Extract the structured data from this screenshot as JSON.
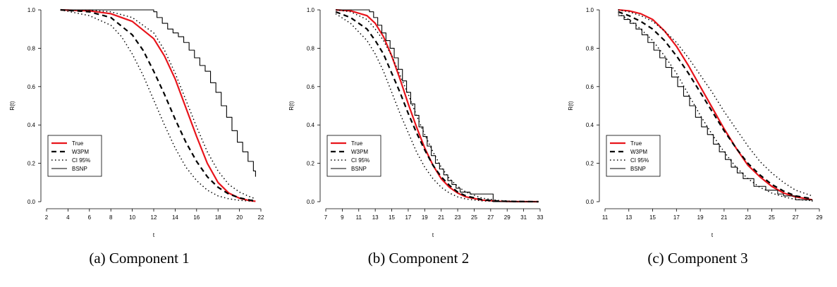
{
  "figure": {
    "captions": [
      "(a) Component 1",
      "(b) Component 2",
      "(c) Component 3"
    ]
  },
  "chart_data": [
    {
      "type": "line",
      "title": "",
      "xlabel": "t",
      "ylabel": "R(t)",
      "xlim": [
        2,
        22
      ],
      "ylim": [
        0,
        1
      ],
      "xticks": [
        2,
        4,
        6,
        8,
        10,
        12,
        14,
        16,
        18,
        20,
        22
      ],
      "yticks": [
        0.0,
        0.2,
        0.4,
        0.6,
        0.8,
        1.0
      ],
      "xtick_labels": [
        "2",
        "4",
        "6",
        "8",
        "10",
        "12",
        "14",
        "16",
        "18",
        "20",
        "22"
      ],
      "ytick_labels": [
        "0.0",
        "0.2",
        "0.4",
        "0.6",
        "0.8",
        "1.0"
      ],
      "grid": false,
      "legend_position": "bottom-left",
      "colors": {
        "True": "#e8141b",
        "W3PM": "#000000",
        "CI 95%": "#000000",
        "BSNP": "#000000"
      },
      "series": [
        {
          "name": "True",
          "style": "solid-red",
          "x": [
            3.3,
            6,
            8,
            10,
            12,
            13,
            14,
            15,
            16,
            17,
            18,
            19,
            20,
            21,
            21.5
          ],
          "y": [
            1.0,
            0.995,
            0.98,
            0.94,
            0.85,
            0.76,
            0.64,
            0.49,
            0.34,
            0.2,
            0.1,
            0.045,
            0.018,
            0.005,
            0.002
          ]
        },
        {
          "name": "W3PM",
          "style": "dashed",
          "x": [
            3.3,
            6,
            8,
            10,
            11,
            12,
            13,
            14,
            15,
            16,
            17,
            18,
            19,
            20,
            21,
            21.5
          ],
          "y": [
            1.0,
            0.99,
            0.96,
            0.87,
            0.79,
            0.68,
            0.56,
            0.43,
            0.31,
            0.21,
            0.13,
            0.075,
            0.04,
            0.02,
            0.008,
            0.005
          ]
        },
        {
          "name": "CI 95%",
          "style": "dotted",
          "x": [
            3.3,
            6,
            8,
            9,
            10,
            11,
            12,
            13,
            14,
            15,
            16,
            17,
            18,
            19,
            20,
            21,
            21.5
          ],
          "y": [
            1.0,
            0.97,
            0.92,
            0.86,
            0.77,
            0.66,
            0.53,
            0.4,
            0.28,
            0.18,
            0.11,
            0.06,
            0.03,
            0.015,
            0.007,
            0.003,
            0.002
          ]
        },
        {
          "name": "CI 95%",
          "style": "dotted",
          "x": [
            3.3,
            6,
            8,
            10,
            12,
            13,
            14,
            15,
            16,
            17,
            18,
            19,
            20,
            21,
            21.5
          ],
          "y": [
            1.0,
            0.998,
            0.99,
            0.96,
            0.88,
            0.79,
            0.67,
            0.53,
            0.39,
            0.26,
            0.16,
            0.09,
            0.05,
            0.025,
            0.015
          ]
        },
        {
          "name": "BSNP",
          "style": "step",
          "x": [
            3.3,
            12,
            12.3,
            12.8,
            13.3,
            13.8,
            14.3,
            14.8,
            15.3,
            15.8,
            16.3,
            16.8,
            17.3,
            17.8,
            18.3,
            18.8,
            19.3,
            19.8,
            20.3,
            20.8,
            21.3,
            21.5
          ],
          "y": [
            1.0,
            0.99,
            0.96,
            0.93,
            0.9,
            0.88,
            0.86,
            0.83,
            0.79,
            0.75,
            0.71,
            0.68,
            0.62,
            0.57,
            0.5,
            0.44,
            0.37,
            0.31,
            0.26,
            0.21,
            0.16,
            0.13
          ]
        }
      ],
      "legend": [
        "True",
        "W3PM",
        "CI 95%",
        "BSNP"
      ]
    },
    {
      "type": "line",
      "title": "",
      "xlabel": "t",
      "ylabel": "R(t)",
      "xlim": [
        7,
        33
      ],
      "ylim": [
        0,
        1
      ],
      "xticks": [
        7,
        9,
        11,
        13,
        15,
        17,
        19,
        21,
        23,
        25,
        27,
        29,
        31,
        33
      ],
      "yticks": [
        0.0,
        0.2,
        0.4,
        0.6,
        0.8,
        1.0
      ],
      "xtick_labels": [
        "7",
        "9",
        "11",
        "13",
        "15",
        "17",
        "19",
        "21",
        "23",
        "25",
        "27",
        "29",
        "31",
        "33"
      ],
      "ytick_labels": [
        "0.0",
        "0.2",
        "0.4",
        "0.6",
        "0.8",
        "1.0"
      ],
      "grid": false,
      "legend_position": "bottom-left",
      "colors": {
        "True": "#e8141b",
        "W3PM": "#000000",
        "CI 95%": "#000000",
        "BSNP": "#000000"
      },
      "series": [
        {
          "name": "True",
          "style": "solid-red",
          "x": [
            8.2,
            10,
            12,
            13,
            14,
            15,
            16,
            17,
            18,
            19,
            20,
            21,
            22,
            23,
            24,
            26,
            28,
            30,
            32.8
          ],
          "y": [
            1.0,
            0.995,
            0.97,
            0.93,
            0.86,
            0.76,
            0.64,
            0.51,
            0.39,
            0.28,
            0.19,
            0.12,
            0.075,
            0.045,
            0.025,
            0.008,
            0.002,
            0.0005,
            0.0
          ]
        },
        {
          "name": "W3PM",
          "style": "dashed",
          "x": [
            8.2,
            10,
            12,
            13,
            14,
            15,
            16,
            17,
            18,
            19,
            20,
            21,
            22,
            23,
            24,
            26,
            28,
            30,
            32.8
          ],
          "y": [
            0.99,
            0.96,
            0.9,
            0.84,
            0.77,
            0.67,
            0.57,
            0.46,
            0.36,
            0.27,
            0.19,
            0.13,
            0.085,
            0.05,
            0.03,
            0.01,
            0.003,
            0.001,
            0.0
          ]
        },
        {
          "name": "CI 95%",
          "style": "dotted",
          "x": [
            8.2,
            10,
            12,
            13,
            14,
            15,
            16,
            17,
            18,
            19,
            20,
            21,
            22,
            23,
            24,
            26,
            28,
            30,
            32.8
          ],
          "y": [
            0.98,
            0.93,
            0.84,
            0.77,
            0.68,
            0.57,
            0.46,
            0.36,
            0.26,
            0.18,
            0.12,
            0.075,
            0.045,
            0.025,
            0.014,
            0.004,
            0.001,
            0.0,
            0.0
          ]
        },
        {
          "name": "CI 95%",
          "style": "dotted",
          "x": [
            8.2,
            10,
            12,
            13,
            14,
            15,
            16,
            17,
            18,
            19,
            20,
            21,
            22,
            23,
            24,
            26,
            28,
            30,
            32.8
          ],
          "y": [
            1.0,
            0.99,
            0.95,
            0.9,
            0.84,
            0.76,
            0.66,
            0.56,
            0.45,
            0.35,
            0.26,
            0.18,
            0.12,
            0.08,
            0.05,
            0.018,
            0.006,
            0.002,
            0.0
          ]
        },
        {
          "name": "BSNP",
          "style": "step",
          "x": [
            8.2,
            12.3,
            12.8,
            13.3,
            13.8,
            14.3,
            14.8,
            15.3,
            15.8,
            16.3,
            16.8,
            17.3,
            17.8,
            18.3,
            18.8,
            19.3,
            19.8,
            20.3,
            20.8,
            21.3,
            21.8,
            22.3,
            22.8,
            23.3,
            24.5,
            27.3,
            28,
            32.8
          ],
          "y": [
            1.0,
            0.99,
            0.96,
            0.92,
            0.88,
            0.84,
            0.8,
            0.75,
            0.69,
            0.63,
            0.57,
            0.51,
            0.45,
            0.39,
            0.34,
            0.29,
            0.24,
            0.2,
            0.17,
            0.14,
            0.11,
            0.09,
            0.07,
            0.05,
            0.04,
            0.0,
            0.0,
            0.0
          ]
        }
      ],
      "legend": [
        "True",
        "W3PM",
        "CI 95%",
        "BSNP"
      ]
    },
    {
      "type": "line",
      "title": "",
      "xlabel": "t",
      "ylabel": "R(t)",
      "xlim": [
        11,
        29
      ],
      "ylim": [
        0,
        1
      ],
      "xticks": [
        11,
        13,
        15,
        17,
        19,
        21,
        23,
        25,
        27,
        29
      ],
      "yticks": [
        0.0,
        0.2,
        0.4,
        0.6,
        0.8,
        1.0
      ],
      "xtick_labels": [
        "11",
        "13",
        "15",
        "17",
        "19",
        "21",
        "23",
        "25",
        "27",
        "29"
      ],
      "ytick_labels": [
        "0.0",
        "0.2",
        "0.4",
        "0.6",
        "0.8",
        "1.0"
      ],
      "grid": false,
      "legend_position": "bottom-left",
      "colors": {
        "True": "#e8141b",
        "W3PM": "#000000",
        "CI 95%": "#000000",
        "BSNP": "#000000"
      },
      "series": [
        {
          "name": "True",
          "style": "solid-red",
          "x": [
            12.1,
            13,
            14,
            15,
            16,
            17,
            18,
            19,
            20,
            21,
            22,
            23,
            24,
            25,
            26,
            27,
            28.4
          ],
          "y": [
            1.0,
            0.995,
            0.98,
            0.95,
            0.89,
            0.81,
            0.71,
            0.6,
            0.49,
            0.38,
            0.28,
            0.19,
            0.13,
            0.08,
            0.045,
            0.025,
            0.01
          ]
        },
        {
          "name": "W3PM",
          "style": "dashed",
          "x": [
            12.1,
            13,
            14,
            15,
            16,
            17,
            18,
            19,
            20,
            21,
            22,
            23,
            24,
            25,
            26,
            27,
            28.4
          ],
          "y": [
            0.99,
            0.97,
            0.94,
            0.9,
            0.84,
            0.76,
            0.67,
            0.57,
            0.47,
            0.37,
            0.28,
            0.2,
            0.14,
            0.09,
            0.055,
            0.03,
            0.015
          ]
        },
        {
          "name": "CI 95%",
          "style": "dotted",
          "x": [
            12.1,
            13,
            14,
            15,
            16,
            17,
            18,
            19,
            20,
            21,
            22,
            23,
            24,
            25,
            26,
            27,
            28.4
          ],
          "y": [
            0.98,
            0.95,
            0.9,
            0.84,
            0.76,
            0.67,
            0.56,
            0.45,
            0.35,
            0.26,
            0.18,
            0.12,
            0.075,
            0.045,
            0.025,
            0.012,
            0.005
          ]
        },
        {
          "name": "CI 95%",
          "style": "dotted",
          "x": [
            12.1,
            13,
            14,
            15,
            16,
            17,
            18,
            19,
            20,
            21,
            22,
            23,
            24,
            25,
            26,
            27,
            28.4
          ],
          "y": [
            1.0,
            0.99,
            0.97,
            0.94,
            0.89,
            0.83,
            0.75,
            0.66,
            0.57,
            0.47,
            0.38,
            0.29,
            0.21,
            0.15,
            0.1,
            0.06,
            0.03
          ]
        },
        {
          "name": "BSNP",
          "style": "step",
          "x": [
            12.1,
            12.6,
            13.1,
            13.6,
            14.1,
            14.6,
            15.1,
            15.6,
            16.1,
            16.6,
            17.1,
            17.6,
            18.1,
            18.6,
            19.1,
            19.6,
            20.1,
            20.6,
            21.1,
            21.6,
            22.1,
            22.6,
            23.5,
            24.5,
            25.5,
            26,
            27,
            28.4
          ],
          "y": [
            0.97,
            0.95,
            0.93,
            0.9,
            0.87,
            0.83,
            0.79,
            0.75,
            0.7,
            0.65,
            0.6,
            0.55,
            0.5,
            0.44,
            0.39,
            0.35,
            0.3,
            0.26,
            0.22,
            0.18,
            0.15,
            0.12,
            0.08,
            0.06,
            0.04,
            0.03,
            0.01,
            0.0
          ]
        }
      ],
      "legend": [
        "True",
        "W3PM",
        "CI 95%",
        "BSNP"
      ]
    }
  ]
}
